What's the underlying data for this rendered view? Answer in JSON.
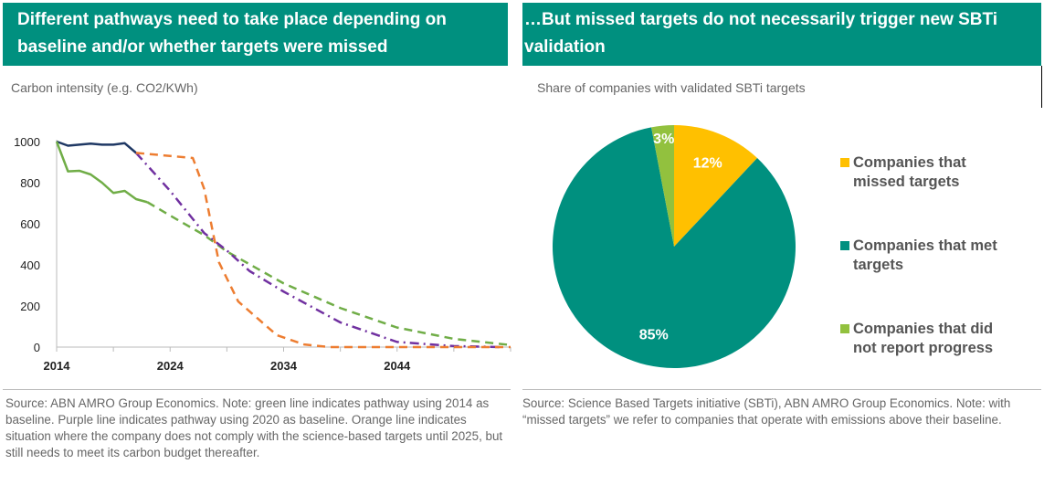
{
  "left": {
    "title": "Different pathways need to take place depending on baseline and/or whether targets were missed",
    "subtitle": "Carbon intensity (e.g. CO2/KWh)",
    "source": "Source: ABN AMRO Group Economics. Note: green line indicates pathway using 2014 as baseline. Purple line indicates pathway using 2020 as baseline. Orange line indicates situation where the company does not comply with the science-based targets until 2025, but still needs to meet its carbon budget thereafter."
  },
  "right": {
    "title": "…But missed targets do not necessarily trigger new SBTi validation",
    "subtitle": "Share of companies with validated SBTi targets",
    "source": "Source: Science Based Targets initiative (SBTi), ABN AMRO Group Economics. Note: with “missed targets” we refer to companies that operate with emissions above their baseline."
  },
  "chart_data": [
    {
      "type": "line",
      "xlim": [
        2014,
        2054
      ],
      "ylim": [
        0,
        1000
      ],
      "x_ticks": [
        2014,
        2024,
        2034,
        2044
      ],
      "y_ticks": [
        0,
        200,
        400,
        600,
        800,
        1000
      ],
      "grid": false,
      "series": [
        {
          "color": "#1f3864",
          "style": "solid",
          "points": [
            [
              2014,
              1000
            ],
            [
              2015,
              980
            ],
            [
              2016,
              985
            ],
            [
              2017,
              990
            ],
            [
              2018,
              985
            ],
            [
              2019,
              985
            ],
            [
              2020,
              992
            ],
            [
              2021,
              945
            ]
          ]
        },
        {
          "color": "#70ad47",
          "style": "solid",
          "points": [
            [
              2014,
              1000
            ],
            [
              2015,
              855
            ],
            [
              2016,
              858
            ],
            [
              2017,
              840
            ],
            [
              2018,
              800
            ],
            [
              2019,
              750
            ],
            [
              2020,
              760
            ],
            [
              2021,
              720
            ],
            [
              2022,
              705
            ]
          ]
        },
        {
          "color": "#70ad47",
          "style": "dashed",
          "points": [
            [
              2022,
              705
            ],
            [
              2024,
              640
            ],
            [
              2027,
              545
            ],
            [
              2029,
              465
            ],
            [
              2034,
              310
            ],
            [
              2039,
              190
            ],
            [
              2044,
              95
            ],
            [
              2049,
              40
            ],
            [
              2054,
              10
            ]
          ]
        },
        {
          "color": "#7030a0",
          "style": "dashdot",
          "points": [
            [
              2021,
              945
            ],
            [
              2024,
              760
            ],
            [
              2027,
              555
            ],
            [
              2029,
              470
            ],
            [
              2031,
              370
            ],
            [
              2034,
              270
            ],
            [
              2039,
              120
            ],
            [
              2044,
              25
            ],
            [
              2049,
              5
            ],
            [
              2053,
              0
            ]
          ]
        },
        {
          "color": "#ed7d31",
          "style": "dashed",
          "points": [
            [
              2021,
              945
            ],
            [
              2026,
              920
            ],
            [
              2027,
              770
            ],
            [
              2028.3,
              413
            ],
            [
              2030,
              222
            ],
            [
              2033.4,
              58
            ],
            [
              2035.8,
              13
            ],
            [
              2038,
              0
            ],
            [
              2054,
              0
            ]
          ]
        }
      ]
    },
    {
      "type": "pie",
      "slices": [
        {
          "label": "Companies that missed targets",
          "value": 12,
          "data_label": "12%",
          "color": "#ffc000"
        },
        {
          "label": "Companies that met targets",
          "value": 85,
          "data_label": "85%",
          "color": "#00907f"
        },
        {
          "label": "Companies that did not report progress",
          "value": 3,
          "data_label": "3%",
          "color": "#92c13e"
        }
      ],
      "legend_position": "right"
    }
  ]
}
